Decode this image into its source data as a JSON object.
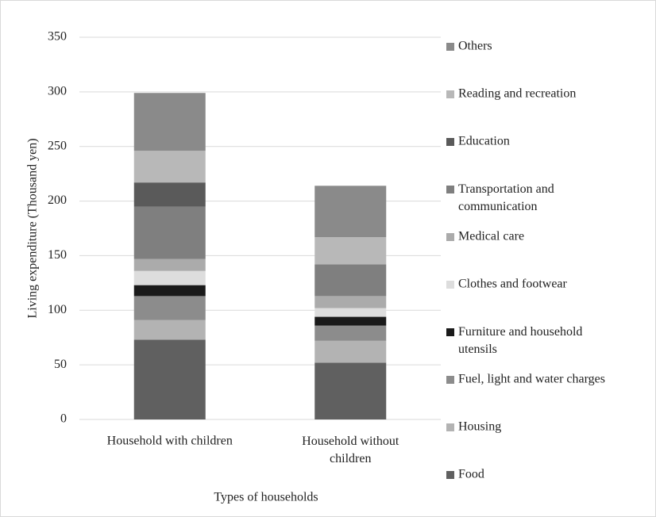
{
  "chart_data": {
    "type": "stacked-bar",
    "y_label": "Living expenditure (Thousand yen)",
    "x_label": "Types of households",
    "categories": [
      "Household with children",
      "Household without children"
    ],
    "ylim": [
      0,
      350
    ],
    "yticks": [
      0,
      50,
      100,
      150,
      200,
      250,
      300,
      350
    ],
    "grid": true,
    "legend": "right",
    "series": [
      {
        "name": "Food",
        "color": "#606060",
        "values": [
          73,
          52
        ]
      },
      {
        "name": "Housing",
        "color": "#b3b3b3",
        "values": [
          18,
          20
        ]
      },
      {
        "name": "Fuel, light and water charges",
        "color": "#8c8c8c",
        "values": [
          22,
          14
        ]
      },
      {
        "name": "Furniture and household utensils",
        "color": "#1a1a1a",
        "values": [
          10,
          8
        ]
      },
      {
        "name": "Clothes and footwear",
        "color": "#dddddd",
        "values": [
          13,
          8
        ]
      },
      {
        "name": "Medical care",
        "color": "#ababab",
        "values": [
          11,
          11
        ]
      },
      {
        "name": "Transportation and communication",
        "color": "#7f7f7f",
        "values": [
          48,
          29
        ]
      },
      {
        "name": "Education",
        "color": "#5a5a5a",
        "values": [
          22,
          0
        ]
      },
      {
        "name": "Reading and recreation",
        "color": "#b8b8b8",
        "values": [
          29,
          25
        ]
      },
      {
        "name": "Others",
        "color": "#8a8a8a",
        "values": [
          53,
          47
        ]
      }
    ]
  }
}
